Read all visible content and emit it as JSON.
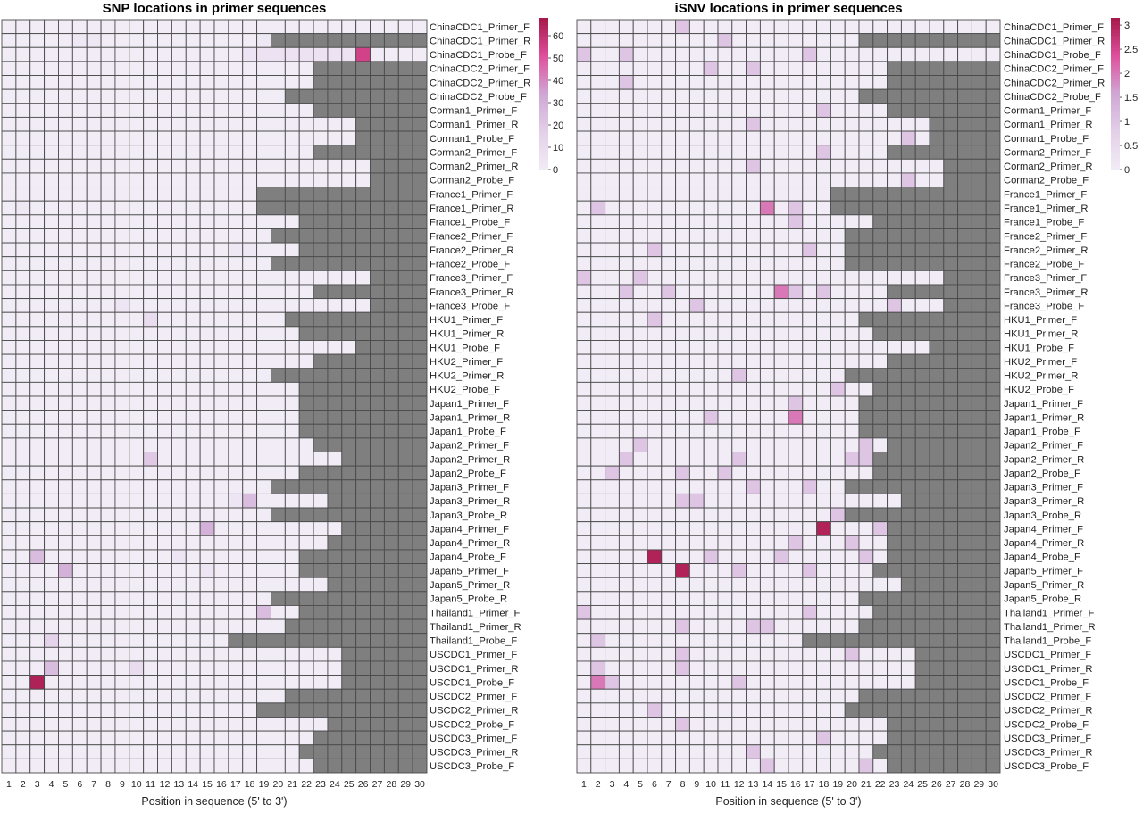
{
  "colors": {
    "na": "#7f7f7f",
    "grid": "#4a4a4a",
    "ramp": [
      "#f1ecf6",
      "#e2d0e8",
      "#cfa7d4",
      "#df4f9c",
      "#a51848"
    ]
  },
  "chart_data": [
    {
      "type": "heatmap",
      "title": "SNP locations in primer sequences",
      "xlabel": "Position in sequence (5' to 3')",
      "x": [
        1,
        2,
        3,
        4,
        5,
        6,
        7,
        8,
        9,
        10,
        11,
        12,
        13,
        14,
        15,
        16,
        17,
        18,
        19,
        20,
        21,
        22,
        23,
        24,
        25,
        26,
        27,
        28,
        29,
        30
      ],
      "legend": {
        "position": "top-right",
        "range": [
          0,
          68
        ],
        "ticks": [
          "60",
          "50",
          "40",
          "30",
          "20",
          "10",
          "0"
        ],
        "tick_values": [
          60,
          50,
          40,
          30,
          20,
          10,
          0
        ]
      },
      "rows": [
        {
          "name": "ChinaCDC1_Primer_F",
          "length": 30,
          "values": {}
        },
        {
          "name": "ChinaCDC1_Primer_R",
          "length": 19,
          "values": {
            "6": 3,
            "7": 3,
            "19": 3
          }
        },
        {
          "name": "ChinaCDC1_Probe_F",
          "length": 30,
          "values": {
            "18": 4,
            "19": 6,
            "20": 6,
            "21": 6,
            "22": 6,
            "23": 6,
            "24": 6,
            "25": 6,
            "26": 55
          }
        },
        {
          "name": "ChinaCDC2_Primer_F",
          "length": 22,
          "values": {}
        },
        {
          "name": "ChinaCDC2_Primer_R",
          "length": 22,
          "values": {}
        },
        {
          "name": "ChinaCDC2_Probe_F",
          "length": 20,
          "values": {}
        },
        {
          "name": "Corman1_Primer_F",
          "length": 22,
          "values": {}
        },
        {
          "name": "Corman1_Primer_R",
          "length": 25,
          "values": {}
        },
        {
          "name": "Corman1_Probe_F",
          "length": 25,
          "values": {}
        },
        {
          "name": "Corman2_Primer_F",
          "length": 22,
          "values": {}
        },
        {
          "name": "Corman2_Primer_R",
          "length": 26,
          "values": {}
        },
        {
          "name": "Corman2_Probe_F",
          "length": 26,
          "values": {}
        },
        {
          "name": "France1_Primer_F",
          "length": 18,
          "values": {}
        },
        {
          "name": "France1_Primer_R",
          "length": 18,
          "values": {
            "2": 3
          }
        },
        {
          "name": "France1_Probe_F",
          "length": 21,
          "values": {}
        },
        {
          "name": "France2_Primer_F",
          "length": 19,
          "values": {}
        },
        {
          "name": "France2_Primer_R",
          "length": 21,
          "values": {
            "17": 3,
            "18": 3
          }
        },
        {
          "name": "France2_Probe_F",
          "length": 19,
          "values": {}
        },
        {
          "name": "France3_Primer_F",
          "length": 26,
          "values": {}
        },
        {
          "name": "France3_Primer_R",
          "length": 22,
          "values": {}
        },
        {
          "name": "France3_Probe_F",
          "length": 26,
          "values": {
            "9": 4
          }
        },
        {
          "name": "HKU1_Primer_F",
          "length": 20,
          "values": {
            "11": 10
          }
        },
        {
          "name": "HKU1_Primer_R",
          "length": 21,
          "values": {}
        },
        {
          "name": "HKU1_Probe_F",
          "length": 25,
          "values": {}
        },
        {
          "name": "HKU2_Primer_F",
          "length": 22,
          "values": {}
        },
        {
          "name": "HKU2_Primer_R",
          "length": 19,
          "values": {}
        },
        {
          "name": "HKU2_Probe_F",
          "length": 21,
          "values": {}
        },
        {
          "name": "Japan1_Primer_F",
          "length": 21,
          "values": {}
        },
        {
          "name": "Japan1_Primer_R",
          "length": 21,
          "values": {}
        },
        {
          "name": "Japan1_Probe_F",
          "length": 21,
          "values": {}
        },
        {
          "name": "Japan2_Primer_F",
          "length": 22,
          "values": {}
        },
        {
          "name": "Japan2_Primer_R",
          "length": 24,
          "values": {
            "11": 20
          }
        },
        {
          "name": "Japan2_Probe_F",
          "length": 21,
          "values": {}
        },
        {
          "name": "Japan3_Primer_F",
          "length": 19,
          "values": {}
        },
        {
          "name": "Japan3_Primer_R",
          "length": 23,
          "values": {
            "17": 4,
            "18": 25
          }
        },
        {
          "name": "Japan3_Probe_R",
          "length": 19,
          "values": {}
        },
        {
          "name": "Japan4_Primer_F",
          "length": 24,
          "values": {
            "15": 30
          }
        },
        {
          "name": "Japan4_Primer_R",
          "length": 23,
          "values": {}
        },
        {
          "name": "Japan4_Probe_F",
          "length": 21,
          "values": {
            "3": 25,
            "13": 4
          }
        },
        {
          "name": "Japan5_Primer_F",
          "length": 21,
          "values": {
            "5": 30,
            "15": 4
          }
        },
        {
          "name": "Japan5_Primer_R",
          "length": 23,
          "values": {}
        },
        {
          "name": "Japan5_Probe_R",
          "length": 19,
          "values": {}
        },
        {
          "name": "Thailand1_Primer_F",
          "length": 21,
          "values": {
            "19": 25
          }
        },
        {
          "name": "Thailand1_Primer_R",
          "length": 20,
          "values": {}
        },
        {
          "name": "Thailand1_Probe_F",
          "length": 16,
          "values": {
            "4": 15
          }
        },
        {
          "name": "USCDC1_Primer_F",
          "length": 24,
          "values": {}
        },
        {
          "name": "USCDC1_Primer_R",
          "length": 24,
          "values": {
            "4": 25,
            "10": 10
          }
        },
        {
          "name": "USCDC1_Probe_F",
          "length": 24,
          "values": {
            "3": 65
          }
        },
        {
          "name": "USCDC2_Primer_F",
          "length": 20,
          "values": {}
        },
        {
          "name": "USCDC2_Primer_R",
          "length": 18,
          "values": {}
        },
        {
          "name": "USCDC2_Probe_F",
          "length": 23,
          "values": {}
        },
        {
          "name": "USCDC3_Primer_F",
          "length": 22,
          "values": {}
        },
        {
          "name": "USCDC3_Primer_R",
          "length": 21,
          "values": {}
        },
        {
          "name": "USCDC3_Probe_F",
          "length": 22,
          "values": {}
        }
      ]
    },
    {
      "type": "heatmap",
      "title": "iSNV locations in primer sequences",
      "xlabel": "Position in sequence (5' to 3')",
      "x": [
        1,
        2,
        3,
        4,
        5,
        6,
        7,
        8,
        9,
        10,
        11,
        12,
        13,
        14,
        15,
        16,
        17,
        18,
        19,
        20,
        21,
        22,
        23,
        24,
        25,
        26,
        27,
        28,
        29,
        30
      ],
      "legend": {
        "position": "top-right",
        "range": [
          0,
          3.15
        ],
        "ticks": [
          "3",
          "2.5",
          "2",
          "1.5",
          "1",
          "0.5",
          "0"
        ],
        "tick_values": [
          3,
          2.5,
          2,
          1.5,
          1,
          0.5,
          0
        ]
      },
      "rows": [
        {
          "name": "ChinaCDC1_Primer_F",
          "length": 30,
          "values": {
            "8": 1
          }
        },
        {
          "name": "ChinaCDC1_Primer_R",
          "length": 20,
          "values": {
            "11": 1
          }
        },
        {
          "name": "ChinaCDC1_Probe_F",
          "length": 30,
          "values": {
            "1": 1,
            "4": 1,
            "17": 1
          }
        },
        {
          "name": "ChinaCDC2_Primer_F",
          "length": 22,
          "values": {
            "10": 1,
            "13": 1
          }
        },
        {
          "name": "ChinaCDC2_Primer_R",
          "length": 22,
          "values": {
            "4": 1
          }
        },
        {
          "name": "ChinaCDC2_Probe_F",
          "length": 20,
          "values": {}
        },
        {
          "name": "Corman1_Primer_F",
          "length": 22,
          "values": {
            "18": 1
          }
        },
        {
          "name": "Corman1_Primer_R",
          "length": 25,
          "values": {
            "13": 1
          }
        },
        {
          "name": "Corman1_Probe_F",
          "length": 25,
          "values": {
            "24": 1
          }
        },
        {
          "name": "Corman2_Primer_F",
          "length": 22,
          "values": {
            "18": 1
          }
        },
        {
          "name": "Corman2_Primer_R",
          "length": 26,
          "values": {
            "13": 1
          }
        },
        {
          "name": "Corman2_Probe_F",
          "length": 26,
          "values": {
            "24": 1
          }
        },
        {
          "name": "France1_Primer_F",
          "length": 18,
          "values": {}
        },
        {
          "name": "France1_Primer_R",
          "length": 18,
          "values": {
            "2": 1,
            "14": 2,
            "16": 1
          }
        },
        {
          "name": "France1_Probe_F",
          "length": 21,
          "values": {
            "16": 1
          }
        },
        {
          "name": "France2_Primer_F",
          "length": 19,
          "values": {}
        },
        {
          "name": "France2_Primer_R",
          "length": 19,
          "values": {
            "6": 1,
            "17": 1
          }
        },
        {
          "name": "France2_Probe_F",
          "length": 19,
          "values": {}
        },
        {
          "name": "France3_Primer_F",
          "length": 26,
          "values": {
            "1": 1,
            "5": 1
          }
        },
        {
          "name": "France3_Primer_R",
          "length": 22,
          "values": {
            "4": 1,
            "7": 1,
            "15": 2,
            "16": 1,
            "18": 1
          }
        },
        {
          "name": "France3_Probe_F",
          "length": 26,
          "values": {
            "9": 1,
            "23": 1
          }
        },
        {
          "name": "HKU1_Primer_F",
          "length": 20,
          "values": {
            "6": 1
          }
        },
        {
          "name": "HKU1_Primer_R",
          "length": 21,
          "values": {}
        },
        {
          "name": "HKU1_Probe_F",
          "length": 25,
          "values": {}
        },
        {
          "name": "HKU2_Primer_F",
          "length": 22,
          "values": {}
        },
        {
          "name": "HKU2_Primer_R",
          "length": 19,
          "values": {
            "12": 1
          }
        },
        {
          "name": "HKU2_Probe_F",
          "length": 21,
          "values": {
            "19": 1
          }
        },
        {
          "name": "Japan1_Primer_F",
          "length": 20,
          "values": {
            "16": 1
          }
        },
        {
          "name": "Japan1_Primer_R",
          "length": 20,
          "values": {
            "10": 1,
            "16": 2
          }
        },
        {
          "name": "Japan1_Probe_F",
          "length": 20,
          "values": {}
        },
        {
          "name": "Japan2_Primer_F",
          "length": 22,
          "values": {
            "5": 1,
            "21": 1
          }
        },
        {
          "name": "Japan2_Primer_R",
          "length": 21,
          "values": {
            "4": 1,
            "12": 1,
            "20": 1,
            "21": 1
          }
        },
        {
          "name": "Japan2_Probe_F",
          "length": 21,
          "values": {
            "3": 1,
            "8": 1,
            "11": 1
          }
        },
        {
          "name": "Japan3_Primer_F",
          "length": 19,
          "values": {
            "13": 1,
            "17": 1
          }
        },
        {
          "name": "Japan3_Primer_R",
          "length": 23,
          "values": {
            "8": 1,
            "9": 1
          }
        },
        {
          "name": "Japan3_Probe_R",
          "length": 19,
          "values": {
            "19": 1
          }
        },
        {
          "name": "Japan4_Primer_F",
          "length": 22,
          "values": {
            "18": 3,
            "22": 1
          }
        },
        {
          "name": "Japan4_Primer_R",
          "length": 22,
          "values": {
            "16": 1,
            "20": 1
          }
        },
        {
          "name": "Japan4_Probe_F",
          "length": 22,
          "values": {
            "6": 3,
            "10": 1,
            "15": 1,
            "21": 1
          }
        },
        {
          "name": "Japan5_Primer_F",
          "length": 21,
          "values": {
            "8": 3,
            "12": 1,
            "17": 1
          }
        },
        {
          "name": "Japan5_Primer_R",
          "length": 23,
          "values": {}
        },
        {
          "name": "Japan5_Probe_R",
          "length": 20,
          "values": {}
        },
        {
          "name": "Thailand1_Primer_F",
          "length": 21,
          "values": {
            "1": 1,
            "17": 1
          }
        },
        {
          "name": "Thailand1_Primer_R",
          "length": 20,
          "values": {
            "8": 1,
            "13": 1,
            "14": 1
          }
        },
        {
          "name": "Thailand1_Probe_F",
          "length": 16,
          "values": {
            "2": 1
          }
        },
        {
          "name": "USCDC1_Primer_F",
          "length": 24,
          "values": {
            "8": 1,
            "20": 1
          }
        },
        {
          "name": "USCDC1_Primer_R",
          "length": 24,
          "values": {
            "2": 1,
            "8": 1
          }
        },
        {
          "name": "USCDC1_Probe_F",
          "length": 24,
          "values": {
            "2": 2,
            "3": 1,
            "12": 1
          }
        },
        {
          "name": "USCDC2_Primer_F",
          "length": 20,
          "values": {}
        },
        {
          "name": "USCDC2_Primer_R",
          "length": 19,
          "values": {
            "6": 1
          }
        },
        {
          "name": "USCDC2_Probe_F",
          "length": 22,
          "values": {
            "8": 1
          }
        },
        {
          "name": "USCDC3_Primer_F",
          "length": 22,
          "values": {
            "18": 1
          }
        },
        {
          "name": "USCDC3_Primer_R",
          "length": 21,
          "values": {
            "13": 1
          }
        },
        {
          "name": "USCDC3_Probe_F",
          "length": 22,
          "values": {
            "14": 1,
            "21": 1
          }
        }
      ]
    }
  ]
}
